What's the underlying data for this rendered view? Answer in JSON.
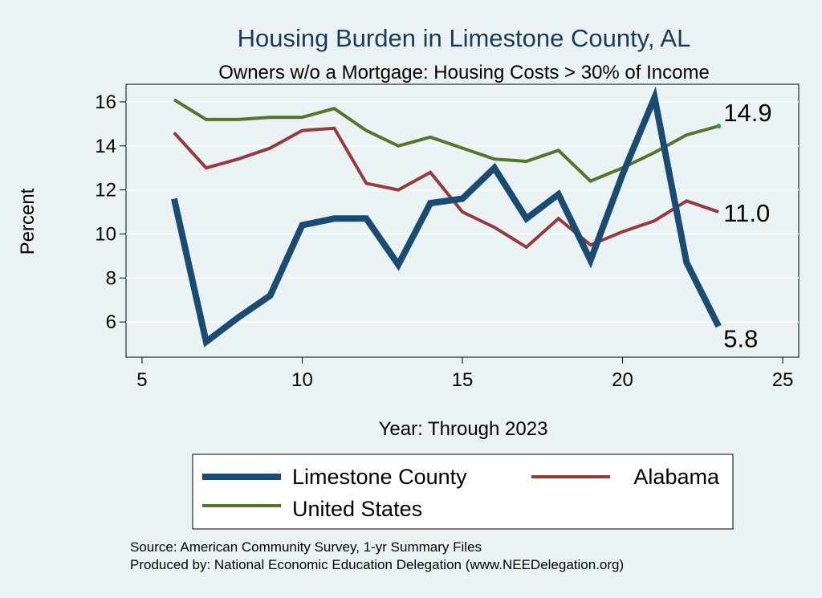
{
  "chart_data": {
    "type": "line",
    "title": "Housing Burden in Limestone County, AL",
    "subtitle": "Owners w/o a Mortgage: Housing Costs > 30% of Income",
    "xlabel": "Year: Through 2023",
    "ylabel": "Percent",
    "xlim": [
      4.5,
      25.5
    ],
    "ylim": [
      4.4,
      16.8
    ],
    "xticks": [
      5,
      10,
      15,
      20,
      25
    ],
    "yticks": [
      6,
      8,
      10,
      12,
      14,
      16
    ],
    "grid": true,
    "legend_position": "bottom",
    "series": [
      {
        "name": "Limestone County",
        "color": "#1a4b73",
        "x": [
          6,
          7,
          8,
          9,
          10,
          11,
          12,
          13,
          14,
          15,
          16,
          17,
          18,
          19,
          20,
          21,
          22,
          23
        ],
        "y": [
          11.6,
          5.1,
          6.2,
          7.2,
          10.4,
          10.7,
          10.7,
          8.6,
          11.4,
          11.6,
          13.0,
          10.7,
          11.8,
          8.8,
          12.7,
          16.2,
          8.7,
          5.8
        ],
        "end_label": "5.8"
      },
      {
        "name": "Alabama",
        "color": "#943a40",
        "x": [
          6,
          7,
          8,
          9,
          10,
          11,
          12,
          13,
          14,
          15,
          16,
          17,
          18,
          19,
          20,
          21,
          22,
          23
        ],
        "y": [
          14.6,
          13.0,
          13.4,
          13.9,
          14.7,
          14.8,
          12.3,
          12.0,
          12.8,
          11.0,
          10.3,
          9.4,
          10.7,
          9.5,
          10.1,
          10.6,
          11.5,
          11.0
        ],
        "end_label": "11.0"
      },
      {
        "name": "United States",
        "color": "#55752f",
        "x": [
          6,
          7,
          8,
          9,
          10,
          11,
          12,
          13,
          14,
          15,
          16,
          17,
          18,
          19,
          20,
          21,
          22,
          23
        ],
        "y": [
          16.1,
          15.2,
          15.2,
          15.3,
          15.3,
          15.7,
          14.7,
          14.0,
          14.4,
          13.9,
          13.4,
          13.3,
          13.8,
          12.4,
          13.0,
          13.7,
          14.5,
          14.9
        ],
        "end_label": "14.9"
      }
    ]
  },
  "notes": {
    "source": "Source: American Community Survey, 1-yr Summary Files",
    "produced_by": "Produced by: National Economic Education Delegation (www.NEEDelegation.org)"
  }
}
